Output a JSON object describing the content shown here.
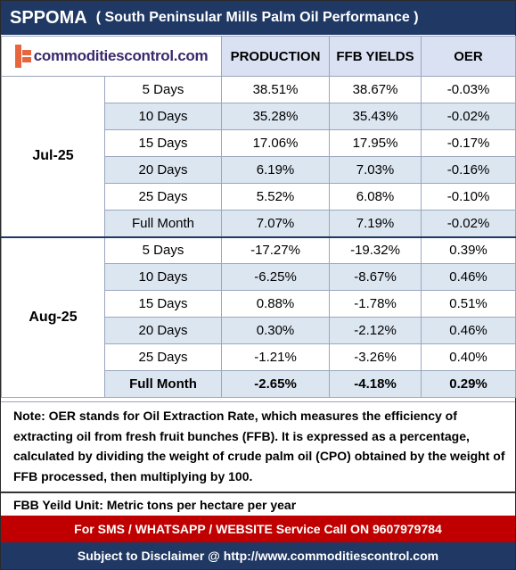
{
  "title": {
    "main": "SPPOMA",
    "subtitle": "( South Peninsular Mills Palm Oil Performance )"
  },
  "logo": {
    "text": "commoditiescontrol.com",
    "mark_color": "#e8663d"
  },
  "headers": {
    "production": "PRODUCTION",
    "ffb_yields": "FFB YIELDS",
    "oer": "OER"
  },
  "groups": [
    {
      "month": "Jul-25",
      "rows": [
        {
          "period": "5 Days",
          "production": "38.51%",
          "ffb": "38.67%",
          "oer": "-0.03%"
        },
        {
          "period": "10 Days",
          "production": "35.28%",
          "ffb": "35.43%",
          "oer": "-0.02%"
        },
        {
          "period": "15 Days",
          "production": "17.06%",
          "ffb": "17.95%",
          "oer": "-0.17%"
        },
        {
          "period": "20 Days",
          "production": "6.19%",
          "ffb": "7.03%",
          "oer": "-0.16%"
        },
        {
          "period": "25 Days",
          "production": "5.52%",
          "ffb": "6.08%",
          "oer": "-0.10%"
        },
        {
          "period": "Full Month",
          "production": "7.07%",
          "ffb": "7.19%",
          "oer": "-0.02%"
        }
      ]
    },
    {
      "month": "Aug-25",
      "rows": [
        {
          "period": "5 Days",
          "production": "-17.27%",
          "ffb": "-19.32%",
          "oer": "0.39%"
        },
        {
          "period": "10 Days",
          "production": "-6.25%",
          "ffb": "-8.67%",
          "oer": "0.46%"
        },
        {
          "period": "15 Days",
          "production": "0.88%",
          "ffb": "-1.78%",
          "oer": "0.51%"
        },
        {
          "period": "20 Days",
          "production": "0.30%",
          "ffb": "-2.12%",
          "oer": "0.46%"
        },
        {
          "period": "25 Days",
          "production": "-1.21%",
          "ffb": "-3.26%",
          "oer": "0.40%"
        },
        {
          "period": "Full Month",
          "production": "-2.65%",
          "ffb": "-4.18%",
          "oer": "0.29%"
        }
      ]
    }
  ],
  "note": "Note: OER stands for Oil Extraction Rate, which measures the efficiency of extracting oil from fresh fruit bunches (FFB). It is expressed as a percentage, calculated by dividing the weight of crude palm oil (CPO) obtained by the weight of FFB processed, then multiplying by 100.",
  "unit_note": "FBB Yeild Unit: Metric tons per hectare per year",
  "sms_line": "For SMS / WHATSAPP / WEBSITE Service Call  ON  9607979784",
  "footer": "Subject to Disclaimer @  http://www.commoditiescontrol.com",
  "colors": {
    "navy": "#1f3864",
    "red": "#c00000",
    "row_shade": "#dce6f1",
    "header_bg": "#d9e1f2"
  }
}
